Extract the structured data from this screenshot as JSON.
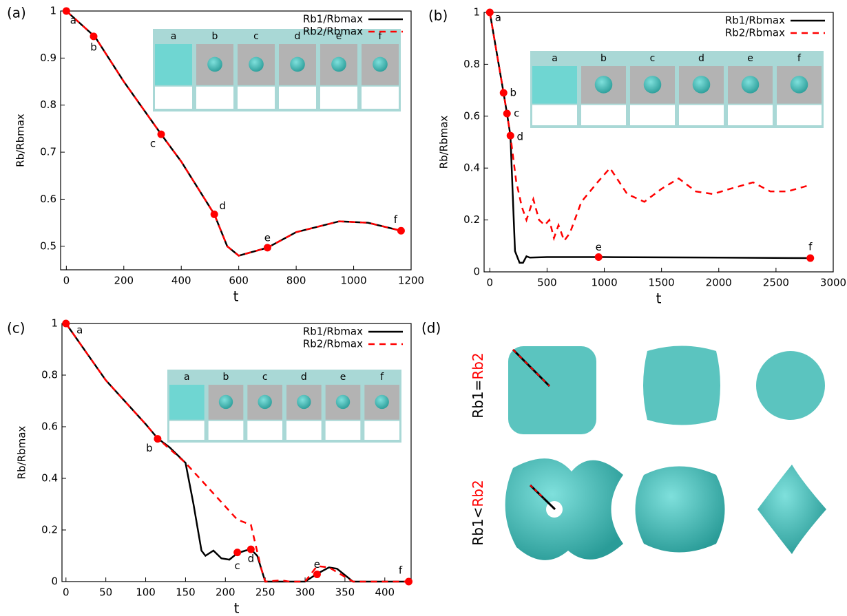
{
  "chart_data": [
    {
      "type": "line",
      "panel_label": "(a)",
      "x_label": "t",
      "y_label": "Rb/Rbmax",
      "xlim": [
        -20,
        1200
      ],
      "ylim": [
        0.45,
        1
      ],
      "xticks": [
        0,
        200,
        400,
        600,
        800,
        1000,
        1200
      ],
      "yticks": [
        0.5,
        0.6,
        0.7,
        0.8,
        0.9,
        1
      ],
      "series": [
        {
          "name": "Rb1/Rbmax",
          "color": "#000000",
          "style": "solid",
          "x": [
            0,
            100,
            200,
            330,
            400,
            515,
            560,
            600,
            700,
            800,
            950,
            1050,
            1165
          ],
          "values": [
            1,
            0.945,
            0.85,
            0.738,
            0.68,
            0.568,
            0.5,
            0.48,
            0.497,
            0.53,
            0.553,
            0.55,
            0.533
          ]
        },
        {
          "name": "Rb2/Rbmax",
          "color": "#ff0000",
          "style": "dashed",
          "x": [
            0,
            100,
            200,
            330,
            400,
            515,
            560,
            600,
            700,
            800,
            950,
            1050,
            1165
          ],
          "values": [
            1,
            0.945,
            0.85,
            0.738,
            0.68,
            0.568,
            0.5,
            0.48,
            0.497,
            0.53,
            0.553,
            0.55,
            0.533
          ]
        }
      ],
      "points": {
        "x": [
          0,
          95,
          330,
          515,
          700,
          1165
        ],
        "values": [
          1,
          0.946,
          0.738,
          0.568,
          0.497,
          0.533
        ],
        "labels": [
          "a",
          "b",
          "c",
          "d",
          "e",
          "f"
        ]
      },
      "inset_labels": [
        "a",
        "b",
        "c",
        "d",
        "e",
        "f"
      ]
    },
    {
      "type": "line",
      "panel_label": "(b)",
      "x_label": "t",
      "y_label": "Rb/Rbmax",
      "xlim": [
        -50,
        3000
      ],
      "ylim": [
        0,
        1
      ],
      "xticks": [
        0,
        500,
        1000,
        1500,
        2000,
        2500,
        3000
      ],
      "yticks": [
        0,
        0.2,
        0.4,
        0.6,
        0.8,
        1
      ],
      "series": [
        {
          "name": "Rb1/Rbmax",
          "color": "#000000",
          "style": "solid",
          "x": [
            0,
            120,
            150,
            180,
            200,
            220,
            260,
            290,
            320,
            350,
            500,
            1000,
            2000,
            2800
          ],
          "values": [
            1,
            0.69,
            0.61,
            0.525,
            0.3,
            0.08,
            0.035,
            0.035,
            0.06,
            0.055,
            0.057,
            0.057,
            0.055,
            0.053
          ]
        },
        {
          "name": "Rb2/Rbmax",
          "color": "#ff0000",
          "style": "dashed",
          "x": [
            0,
            120,
            150,
            180,
            230,
            280,
            320,
            380,
            430,
            480,
            520,
            560,
            600,
            650,
            700,
            800,
            950,
            1050,
            1200,
            1350,
            1500,
            1650,
            1800,
            1950,
            2100,
            2300,
            2450,
            2600,
            2800
          ],
          "values": [
            1,
            0.69,
            0.61,
            0.525,
            0.35,
            0.25,
            0.2,
            0.28,
            0.2,
            0.18,
            0.2,
            0.13,
            0.18,
            0.12,
            0.15,
            0.27,
            0.35,
            0.4,
            0.3,
            0.27,
            0.32,
            0.36,
            0.31,
            0.3,
            0.32,
            0.345,
            0.31,
            0.31,
            0.335
          ]
        }
      ],
      "points": {
        "x": [
          0,
          120,
          150,
          180,
          950,
          2800
        ],
        "values": [
          1,
          0.69,
          0.61,
          0.525,
          0.057,
          0.053
        ],
        "labels": [
          "a",
          "b",
          "c",
          "d",
          "e",
          "f"
        ]
      },
      "inset_labels": [
        "a",
        "b",
        "c",
        "d",
        "e",
        "f"
      ]
    },
    {
      "type": "line",
      "panel_label": "(c)",
      "x_label": "t",
      "y_label": "Rb/Rbmax",
      "xlim": [
        -5,
        433
      ],
      "ylim": [
        0,
        1
      ],
      "xticks": [
        0,
        50,
        100,
        150,
        200,
        250,
        300,
        350,
        400
      ],
      "yticks": [
        0,
        0.2,
        0.4,
        0.6,
        0.8,
        1
      ],
      "series": [
        {
          "name": "Rb1/Rbmax",
          "color": "#000000",
          "style": "solid",
          "x": [
            0,
            50,
            100,
            115,
            130,
            150,
            160,
            170,
            175,
            185,
            195,
            205,
            215,
            225,
            232,
            240,
            250,
            300,
            315,
            330,
            340,
            360,
            430
          ],
          "values": [
            1,
            0.78,
            0.61,
            0.555,
            0.52,
            0.46,
            0.3,
            0.12,
            0.1,
            0.12,
            0.09,
            0.085,
            0.11,
            0.12,
            0.125,
            0.1,
            0,
            0,
            0.03,
            0.055,
            0.05,
            0,
            0
          ]
        },
        {
          "name": "Rb2/Rbmax",
          "color": "#ff0000",
          "style": "dashed",
          "x": [
            0,
            50,
            100,
            115,
            150,
            215,
            232,
            245,
            250,
            270,
            280,
            300,
            315,
            330,
            360,
            430
          ],
          "values": [
            1,
            0.78,
            0.61,
            0.555,
            0.46,
            0.24,
            0.22,
            0.05,
            0,
            0.005,
            0,
            0,
            0.06,
            0.055,
            0,
            0
          ]
        }
      ],
      "points": {
        "x": [
          0,
          115,
          215,
          232,
          315,
          430
        ],
        "values": [
          1,
          0.553,
          0.113,
          0.125,
          0.028,
          0
        ],
        "labels": [
          "a",
          "b",
          "c",
          "d",
          "e",
          "f"
        ]
      },
      "inset_labels": [
        "a",
        "b",
        "c",
        "d",
        "e",
        "f"
      ]
    }
  ],
  "panel_d": {
    "panel_label": "(d)",
    "row_labels": [
      {
        "left": "Rb1",
        "relation": "=",
        "right": "Rb2"
      },
      {
        "left": "Rb1",
        "relation": "<",
        "right": "Rb2"
      }
    ]
  }
}
